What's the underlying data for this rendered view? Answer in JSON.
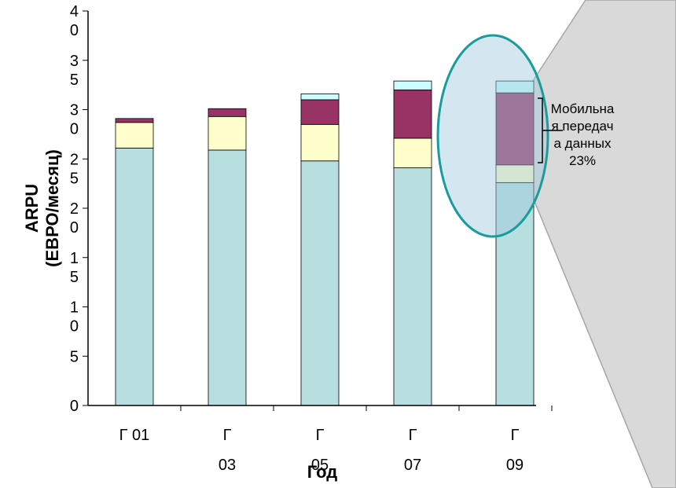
{
  "chart_data": {
    "type": "stacked_bar",
    "categories": [
      "Г 01",
      "Г 03",
      "Г 05",
      "Г 07",
      "Г 09"
    ],
    "series": [
      {
        "color": "#b7dfe0",
        "values": [
          26.1,
          25.9,
          24.8,
          24.1,
          22.6
        ]
      },
      {
        "color": "#ffffcc",
        "values": [
          2.6,
          3.4,
          3.7,
          3.0,
          1.8
        ]
      },
      {
        "color": "#993366",
        "values": [
          0.4,
          0.8,
          2.5,
          4.9,
          7.3
        ]
      },
      {
        "color": "#ccffff",
        "values": [
          0,
          0,
          0.6,
          0.9,
          1.2
        ]
      }
    ],
    "ylim": [
      0,
      40
    ],
    "yticks": [
      0,
      5,
      10,
      15,
      20,
      25,
      30,
      35,
      40
    ],
    "y_label": "ARPU (ЕВРО/месяц)",
    "x_label": "Год",
    "annotation": "Мобильная передача данных 23%"
  }
}
